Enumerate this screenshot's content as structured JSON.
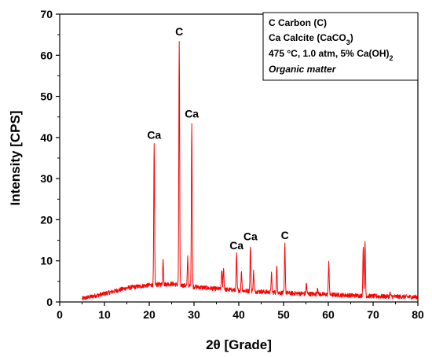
{
  "chart_data": {
    "type": "line",
    "xlabel": "2θ [Grade]",
    "ylabel": "Intensity [CPS]",
    "xlim": [
      0,
      80
    ],
    "ylim": [
      0,
      70
    ],
    "xticks": [
      0,
      10,
      20,
      30,
      40,
      50,
      60,
      70,
      80
    ],
    "yticks": [
      0,
      10,
      20,
      30,
      40,
      50,
      60,
      70
    ],
    "grid": false,
    "legend_position": "top-right",
    "line_color": "#ff0000",
    "legend": {
      "line1": "C Carbon (C)",
      "line2_prefix": "Ca Calcite (CaCO",
      "line2_sub": "3",
      "line2_suffix": ")",
      "line3_prefix": "475 °C, 1.0 atm, 5% Ca(OH)",
      "line3_sub": "2",
      "line4": "Organic matter"
    },
    "baseline": [
      [
        5,
        0.8
      ],
      [
        10,
        2.0
      ],
      [
        15,
        3.4
      ],
      [
        20,
        4.1
      ],
      [
        25,
        4.4
      ],
      [
        30,
        3.7
      ],
      [
        35,
        3.2
      ],
      [
        40,
        2.8
      ],
      [
        45,
        2.5
      ],
      [
        50,
        2.2
      ],
      [
        55,
        2.0
      ],
      [
        60,
        1.8
      ],
      [
        65,
        1.6
      ],
      [
        70,
        1.4
      ],
      [
        75,
        1.3
      ],
      [
        80,
        1.2
      ]
    ],
    "peaks": [
      {
        "x": 21.1,
        "y": 38.3
      },
      {
        "x": 23.1,
        "y": 10.2
      },
      {
        "x": 26.7,
        "y": 63.5
      },
      {
        "x": 28.6,
        "y": 11.0
      },
      {
        "x": 29.5,
        "y": 43.5
      },
      {
        "x": 36.2,
        "y": 8.0
      },
      {
        "x": 36.6,
        "y": 8.4
      },
      {
        "x": 39.5,
        "y": 11.5
      },
      {
        "x": 40.6,
        "y": 7.5
      },
      {
        "x": 42.6,
        "y": 13.7
      },
      {
        "x": 43.3,
        "y": 7.4
      },
      {
        "x": 47.3,
        "y": 7.0
      },
      {
        "x": 48.5,
        "y": 8.6
      },
      {
        "x": 50.3,
        "y": 14.0
      },
      {
        "x": 55.1,
        "y": 4.5
      },
      {
        "x": 57.6,
        "y": 3.6
      },
      {
        "x": 60.1,
        "y": 10.0
      },
      {
        "x": 67.8,
        "y": 13.8
      },
      {
        "x": 68.2,
        "y": 14.5
      },
      {
        "x": 73.8,
        "y": 2.1
      }
    ],
    "annotations": [
      {
        "text": "Ca",
        "x": 21.1,
        "y": 38.3
      },
      {
        "text": "C",
        "x": 26.7,
        "y": 63.5
      },
      {
        "text": "Ca",
        "x": 29.5,
        "y": 43.5
      },
      {
        "text": "Ca",
        "x": 39.5,
        "y": 11.5
      },
      {
        "text": "Ca",
        "x": 42.6,
        "y": 13.7
      },
      {
        "text": "C",
        "x": 50.3,
        "y": 14.0
      }
    ]
  }
}
